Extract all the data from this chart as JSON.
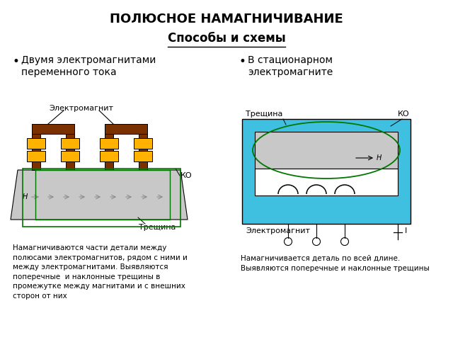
{
  "title": "ПОЛЮСНОЕ НАМАГНИЧИВАНИЕ",
  "subtitle": "Способы и схемы",
  "bullet1": "Двумя электромагнитами\nпеременного тока",
  "bullet2": "В стационарном\nэлектромагните",
  "desc1": "Намагничиваются части детали между\nполюсами электромагнитов, рядом с ними и\nмежду электромагнитами. Выявляются\nпоперечные  и наклонные трещины в\nпромежутке между магнитами и с внешних\nсторон от них",
  "desc2": "Намагничивается деталь по всей длине.\nВыявляются поперечные и наклонные трещины",
  "label_elektromagnit1": "Электромагнит",
  "label_treshina1": "Трещина",
  "label_ko1": "КО",
  "label_h1": "H",
  "label_treshina2": "Трещина",
  "label_ko2": "КО",
  "label_h2": "H",
  "label_elektromagnit2": "Электромагнит",
  "label_i": "I",
  "bg_color": "#ffffff",
  "brown": "#7B3000",
  "yellow": "#FFB300",
  "light_gray": "#C8C8C8",
  "green": "#007700",
  "cyan": "#40C0E0",
  "arrow_gray": "#888888"
}
